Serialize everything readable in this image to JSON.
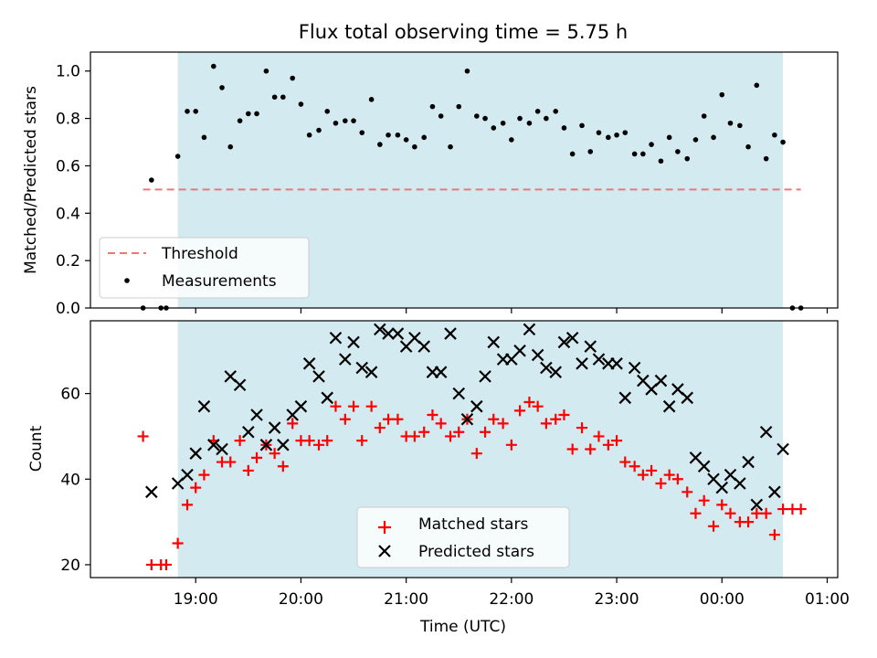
{
  "chart_data": [
    {
      "type": "scatter",
      "title": "Flux total observing time = 5.75 h",
      "xlabel": "",
      "ylabel": "Matched/Predicted stars",
      "ylim": [
        0,
        1.08
      ],
      "yticks": [
        0.0,
        0.2,
        0.4,
        0.6,
        0.8,
        1.0
      ],
      "ytick_labels": [
        "0.0",
        "0.2",
        "0.4",
        "0.6",
        "0.8",
        "1.0"
      ],
      "shaded_region": {
        "x_start": 18.83,
        "x_end": 24.58,
        "color": "#d3eaf0"
      },
      "threshold": {
        "name": "Threshold",
        "y": 0.5,
        "x_start": 18.5,
        "x_end": 24.75,
        "color": "#f47373"
      },
      "series": [
        {
          "name": "Measurements",
          "color": "#000000",
          "x": [
            18.5,
            18.58,
            18.67,
            18.72,
            18.83,
            18.92,
            19.0,
            19.08,
            19.17,
            19.25,
            19.33,
            19.42,
            19.5,
            19.58,
            19.67,
            19.75,
            19.83,
            19.92,
            20.0,
            20.08,
            20.17,
            20.25,
            20.33,
            20.42,
            20.5,
            20.58,
            20.67,
            20.75,
            20.83,
            20.92,
            21.0,
            21.08,
            21.17,
            21.25,
            21.33,
            21.42,
            21.5,
            21.58,
            21.67,
            21.75,
            21.83,
            21.92,
            22.0,
            22.08,
            22.17,
            22.25,
            22.33,
            22.42,
            22.5,
            22.58,
            22.67,
            22.75,
            22.83,
            22.92,
            23.0,
            23.08,
            23.17,
            23.25,
            23.33,
            23.42,
            23.5,
            23.58,
            23.67,
            23.75,
            23.83,
            23.92,
            24.0,
            24.08,
            24.17,
            24.25,
            24.33,
            24.42,
            24.5,
            24.58,
            24.67,
            24.75
          ],
          "y": [
            0.0,
            0.54,
            0.0,
            0.0,
            0.64,
            0.83,
            0.83,
            0.72,
            1.02,
            0.93,
            0.68,
            0.79,
            0.82,
            0.82,
            1.0,
            0.89,
            0.89,
            0.97,
            0.86,
            0.73,
            0.75,
            0.83,
            0.78,
            0.79,
            0.79,
            0.74,
            0.88,
            0.69,
            0.73,
            0.73,
            0.71,
            0.68,
            0.72,
            0.85,
            0.81,
            0.68,
            0.85,
            1.0,
            0.81,
            0.8,
            0.76,
            0.78,
            0.71,
            0.8,
            0.78,
            0.83,
            0.8,
            0.83,
            0.76,
            0.65,
            0.77,
            0.66,
            0.74,
            0.72,
            0.73,
            0.74,
            0.65,
            0.65,
            0.69,
            0.62,
            0.72,
            0.66,
            0.63,
            0.71,
            0.81,
            0.72,
            0.9,
            0.78,
            0.77,
            0.68,
            0.94,
            0.63,
            0.73,
            0.7,
            0.0,
            0.0
          ]
        }
      ],
      "legend": {
        "placement": "lower-left",
        "entries": [
          "Threshold",
          "Measurements"
        ]
      }
    },
    {
      "type": "scatter",
      "title": "",
      "xlabel": "Time (UTC)",
      "ylabel": "Count",
      "xlim": [
        18.0,
        25.1
      ],
      "ylim": [
        17,
        77
      ],
      "xticks": [
        19,
        20,
        21,
        22,
        23,
        24,
        25
      ],
      "xtick_labels": [
        "19:00",
        "20:00",
        "21:00",
        "22:00",
        "23:00",
        "00:00",
        "01:00"
      ],
      "yticks": [
        20,
        40,
        60
      ],
      "ytick_labels": [
        "20",
        "40",
        "60"
      ],
      "shaded_region": {
        "x_start": 18.83,
        "x_end": 24.58,
        "color": "#d3eaf0"
      },
      "series": [
        {
          "name": "Matched stars",
          "color": "#ff0000",
          "marker": "plus",
          "x": [
            18.5,
            18.58,
            18.67,
            18.72,
            18.83,
            18.92,
            19.0,
            19.08,
            19.17,
            19.25,
            19.33,
            19.42,
            19.5,
            19.58,
            19.67,
            19.75,
            19.83,
            19.92,
            20.0,
            20.08,
            20.17,
            20.25,
            20.33,
            20.42,
            20.5,
            20.58,
            20.67,
            20.75,
            20.83,
            20.92,
            21.0,
            21.08,
            21.17,
            21.25,
            21.33,
            21.42,
            21.5,
            21.58,
            21.67,
            21.75,
            21.83,
            21.92,
            22.0,
            22.08,
            22.17,
            22.25,
            22.33,
            22.42,
            22.5,
            22.58,
            22.67,
            22.75,
            22.83,
            22.92,
            23.0,
            23.08,
            23.17,
            23.25,
            23.33,
            23.42,
            23.5,
            23.58,
            23.67,
            23.75,
            23.83,
            23.92,
            24.0,
            24.08,
            24.17,
            24.25,
            24.33,
            24.42,
            24.5,
            24.58,
            24.67,
            24.75
          ],
          "y": [
            50,
            20,
            20,
            20,
            25,
            34,
            38,
            41,
            49,
            44,
            44,
            49,
            42,
            45,
            48,
            46,
            43,
            53,
            49,
            49,
            48,
            49,
            57,
            54,
            57,
            49,
            57,
            52,
            54,
            54,
            50,
            50,
            51,
            55,
            53,
            50,
            51,
            54,
            46,
            51,
            54,
            53,
            48,
            56,
            58,
            57,
            53,
            54,
            55,
            47,
            52,
            47,
            50,
            48,
            49,
            44,
            43,
            41,
            42,
            39,
            41,
            40,
            37,
            32,
            35,
            29,
            34,
            32,
            30,
            30,
            32,
            32,
            27,
            33,
            33,
            33
          ]
        },
        {
          "name": "Predicted stars",
          "color": "#000000",
          "marker": "cross",
          "x": [
            18.58,
            18.83,
            18.92,
            19.0,
            19.08,
            19.17,
            19.25,
            19.33,
            19.42,
            19.5,
            19.58,
            19.67,
            19.75,
            19.83,
            19.92,
            20.0,
            20.08,
            20.17,
            20.25,
            20.33,
            20.42,
            20.5,
            20.58,
            20.67,
            20.75,
            20.83,
            20.92,
            21.0,
            21.08,
            21.17,
            21.25,
            21.33,
            21.42,
            21.5,
            21.58,
            21.67,
            21.75,
            21.83,
            21.92,
            22.0,
            22.08,
            22.17,
            22.25,
            22.33,
            22.42,
            22.5,
            22.58,
            22.67,
            22.75,
            22.83,
            22.92,
            23.0,
            23.08,
            23.17,
            23.25,
            23.33,
            23.42,
            23.5,
            23.58,
            23.67,
            23.75,
            23.83,
            23.92,
            24.0,
            24.08,
            24.17,
            24.25,
            24.33,
            24.42,
            24.5,
            24.58
          ],
          "y": [
            37,
            39,
            41,
            46,
            57,
            48,
            47,
            64,
            62,
            51,
            55,
            48,
            52,
            48,
            55,
            57,
            67,
            64,
            59,
            73,
            68,
            72,
            66,
            65,
            75,
            74,
            74,
            71,
            73,
            71,
            65,
            65,
            74,
            60,
            54,
            57,
            64,
            72,
            68,
            68,
            70,
            75,
            69,
            66,
            65,
            72,
            73,
            67,
            71,
            68,
            67,
            67,
            59,
            66,
            63,
            61,
            63,
            57,
            61,
            59,
            45,
            43,
            40,
            38,
            41,
            39,
            44,
            34,
            51,
            37,
            47
          ]
        }
      ],
      "legend": {
        "placement": "lower-center",
        "entries": [
          "Matched stars",
          "Predicted stars"
        ]
      }
    }
  ]
}
